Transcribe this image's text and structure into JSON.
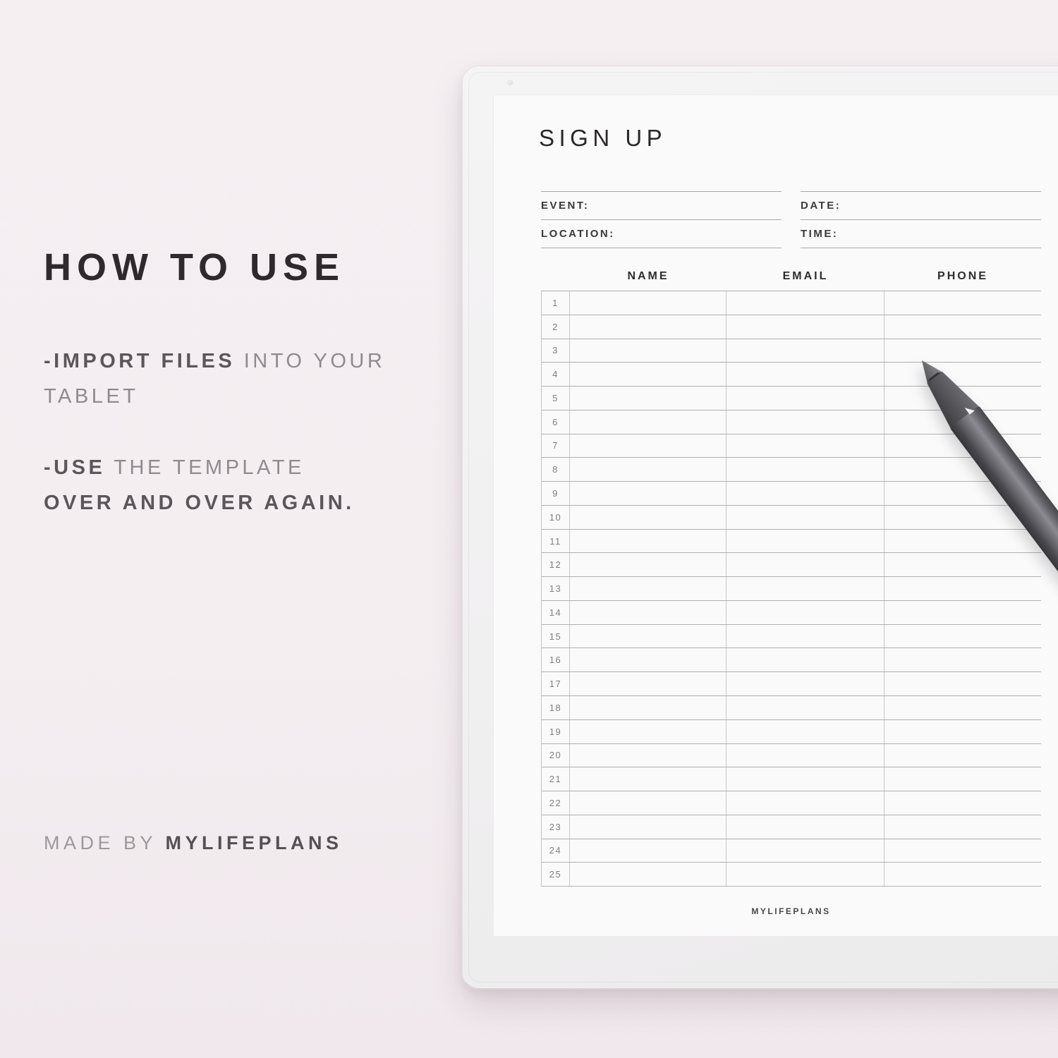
{
  "colors": {
    "page_background": "#f4eef1",
    "tablet_frame": "#f1f0f1",
    "screen_background": "#fafafa",
    "line_gray": "#b2b0b1",
    "heading_dark": "#2d292c",
    "body_bold_gray": "#5a565a",
    "body_light_gray": "#8e8a8e",
    "pen_dark": "#46464a"
  },
  "left_panel": {
    "title": "HOW TO USE",
    "instructions": [
      {
        "lines": [
          [
            {
              "text": "-IMPORT FILES",
              "bold": true
            },
            {
              "text": " INTO YOUR",
              "bold": false
            }
          ],
          [
            {
              "text": "TABLET",
              "bold": false
            }
          ]
        ]
      },
      {
        "lines": [
          [
            {
              "text": "-USE",
              "bold": true
            },
            {
              "text": " THE TEMPLATE",
              "bold": false
            }
          ],
          [
            {
              "text": "OVER AND OVER AGAIN.",
              "bold": true
            }
          ]
        ]
      }
    ],
    "credit": {
      "prefix": "MADE BY ",
      "brand": "MYLIFEPLANS"
    }
  },
  "tablet": {
    "template": {
      "title": "SIGN UP",
      "fields": {
        "left": [
          {
            "label": "EVENT:"
          },
          {
            "label": "LOCATION:"
          }
        ],
        "right": [
          {
            "label": "DATE:"
          },
          {
            "label": "TIME:"
          }
        ]
      },
      "table": {
        "columns": [
          "NAME",
          "EMAIL",
          "PHONE"
        ],
        "row_count": 25,
        "row_numbers": [
          "1",
          "2",
          "3",
          "4",
          "5",
          "6",
          "7",
          "8",
          "9",
          "10",
          "11",
          "12",
          "13",
          "14",
          "15",
          "16",
          "17",
          "18",
          "19",
          "20",
          "21",
          "22",
          "23",
          "24",
          "25"
        ]
      },
      "footer": "MYLIFEPLANS"
    },
    "stylus": {
      "name": "stylus-pen"
    }
  }
}
